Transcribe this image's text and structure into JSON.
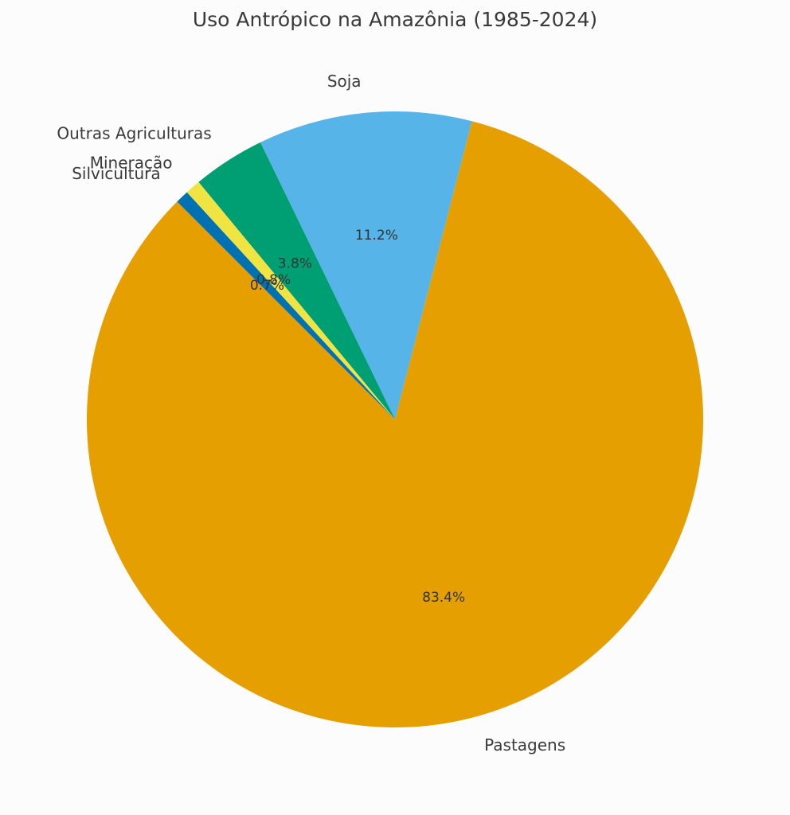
{
  "chart_data": {
    "type": "pie",
    "title": "Uso Antrópico na Amazônia (1985-2024)",
    "categories": [
      "Pastagens",
      "Soja",
      "Outras Agriculturas",
      "Mineração",
      "Silvicultura"
    ],
    "values": [
      83.4,
      11.2,
      3.8,
      0.8,
      0.7
    ],
    "value_labels": [
      "83.4%",
      "11.2%",
      "3.8%",
      "0.8%",
      "0.7%"
    ],
    "colors": [
      "#E69F00",
      "#56B4E9",
      "#009E73",
      "#F0E442",
      "#0072B2"
    ],
    "start_angle_deg": 135,
    "direction": "counterclockwise",
    "legend": "none"
  }
}
